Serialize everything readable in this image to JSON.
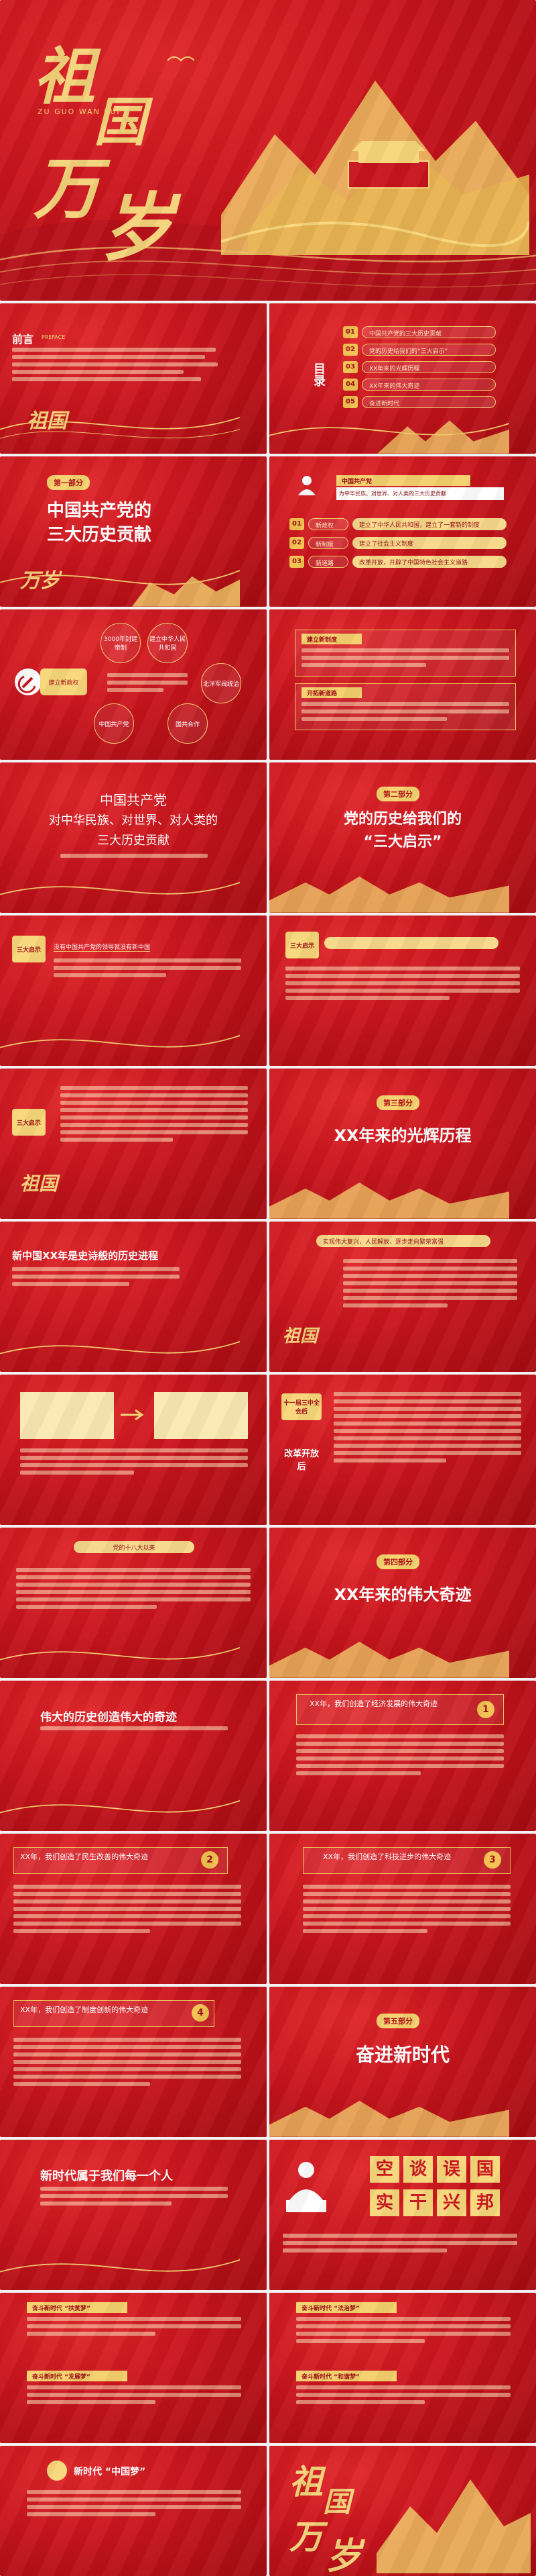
{
  "cover": {
    "calli": [
      "祖",
      "国",
      "万",
      "岁"
    ],
    "pinyin": "ZU GUO WAN SUI"
  },
  "s2": {
    "heading": "前言",
    "sub": "PREFACE",
    "menu_label": "目录",
    "items": [
      {
        "num": "01",
        "text": "中国共产党的三大历史贡献"
      },
      {
        "num": "02",
        "text": "党的历史给我们的“三大启示”"
      },
      {
        "num": "03",
        "text": "XX年来的光辉历程"
      },
      {
        "num": "04",
        "text": "XX年来的伟大奇迹"
      },
      {
        "num": "05",
        "text": "奋进新时代"
      }
    ]
  },
  "s3": {
    "part": "第一部分",
    "title1": "中国共产党的",
    "title2": "三大历史贡献",
    "card_title": "中国共产党",
    "card_text": "为中华民族、对世界、对人类的三大历史贡献",
    "items": [
      {
        "num": "01",
        "label": "新政权",
        "text": "建立了中华人民共和国，建立了一套新的制度"
      },
      {
        "num": "02",
        "label": "新制度",
        "text": "建立了社会主义制度"
      },
      {
        "num": "03",
        "label": "新道路",
        "text": "改革开放，开辟了中国特色社会主义道路"
      }
    ]
  },
  "s4": {
    "center": "建立新政权",
    "circles": [
      "建立中华人民共和国",
      "北洋军阀统治",
      "国共合作",
      "中国共产党"
    ],
    "circle_top": "3000年封建帝制",
    "panel_title": "建立新制度",
    "panel2_title": "开拓新道路"
  },
  "s5": {
    "line1": "中国共产党",
    "line2": "对中华民族、对世界、对人类的",
    "line3": "三大历史贡献",
    "part": "第二部分",
    "title1": "党的历史给我们的",
    "title2": "“三大启示”"
  },
  "s6": {
    "tag": "三大启示",
    "tag2": "三大启示",
    "q": "没有中国共产党的领导就没有新中国"
  },
  "s7": {
    "tag": "三大启示",
    "part": "第三部分",
    "title": "XX年来的光辉历程"
  },
  "s8": {
    "title": "新中国XX年是史诗般的历史进程",
    "ribbon": "实现伟大复兴，人民解放，逐步走向繁荣富强"
  },
  "s9": {
    "tag1": "十一届三中全会后",
    "tag2": "改革开放后"
  },
  "s10": {
    "ribbon": "党的十八大以来",
    "part": "第四部分",
    "title": "XX年来的伟大奇迹"
  },
  "s11": {
    "title": "伟大的历史创造伟大的奇迹",
    "card1_text": "XX年，我们创造了经济发展的伟大奇迹",
    "card1_num": "1"
  },
  "s12": {
    "card2_text": "XX年，我们创造了民生改善的伟大奇迹",
    "card2_num": "2",
    "card3_text": "XX年，我们创造了科技进步的伟大奇迹",
    "card3_num": "3"
  },
  "s13": {
    "card4_text": "XX年，我们创造了制度创新的伟大奇迹",
    "card4_num": "4",
    "part": "第五部分",
    "title": "奋进新时代"
  },
  "s14": {
    "title": "新时代属于我们每一个人",
    "chars": [
      "空",
      "谈",
      "误",
      "国",
      "实",
      "干",
      "兴",
      "邦"
    ]
  },
  "s15": {
    "h1": "奋斗新时代 “扶贫梦”",
    "h2": "奋斗新时代 “发展梦”",
    "h3": "奋斗新时代 “法治梦”",
    "h4": "奋斗新时代 “和谐梦”"
  },
  "s16": {
    "h": "新时代 “中国梦”",
    "calli": [
      "祖",
      "国",
      "万",
      "岁"
    ]
  }
}
